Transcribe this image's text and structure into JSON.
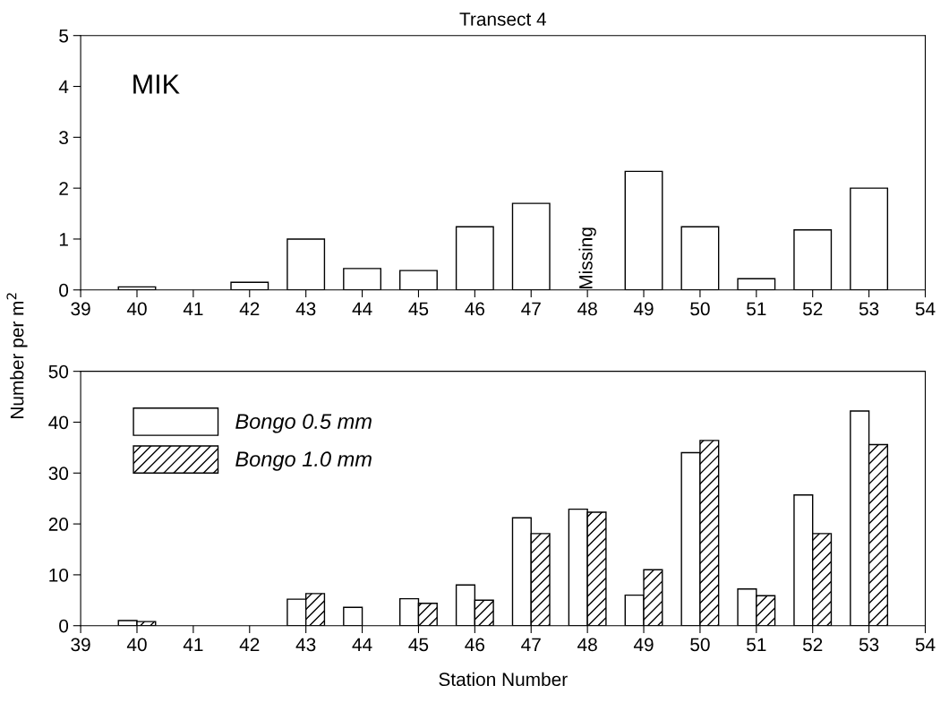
{
  "chart_data": [
    {
      "type": "bar",
      "title": "Transect 4",
      "ylabel": "Number per m$^{2}$",
      "x": [
        40,
        41,
        42,
        43,
        44,
        45,
        46,
        47,
        48,
        49,
        50,
        51,
        52,
        53
      ],
      "series": [
        {
          "color": "#ffffff",
          "values": [
            0.06,
            0,
            0.15,
            1.0,
            0.42,
            0.38,
            1.24,
            1.7,
            null,
            2.33,
            1.24,
            0.22,
            1.18,
            2.0
          ]
        }
      ],
      "xlim": [
        39,
        54
      ],
      "xticks": [
        39,
        40,
        41,
        42,
        43,
        44,
        45,
        46,
        47,
        48,
        49,
        50,
        51,
        52,
        53,
        54
      ],
      "ylim": [
        0,
        5
      ],
      "yticks": [
        0,
        1,
        2,
        3,
        4,
        5
      ],
      "grid": false,
      "legend": false,
      "annotations": [
        "MIK",
        "Missing"
      ]
    },
    {
      "type": "bar",
      "xlabel": "Station Number",
      "x": [
        40,
        41,
        42,
        43,
        44,
        45,
        46,
        47,
        48,
        49,
        50,
        51,
        52,
        53
      ],
      "series": [
        {
          "name": "Bongo 0.5 mm",
          "color": "#ffffff",
          "values": [
            1,
            0,
            0,
            5.2,
            3.6,
            5.3,
            8,
            21.2,
            22.9,
            6,
            34,
            7.2,
            25.7,
            42.2
          ]
        },
        {
          "name": "Bongo 1.0 mm",
          "color": "#000000",
          "values": [
            0.8,
            0,
            0,
            6.3,
            0,
            4.4,
            5,
            18.1,
            22.3,
            11,
            36.4,
            5.9,
            18.1,
            35.6
          ]
        }
      ],
      "xlim": [
        39,
        54
      ],
      "xticks": [
        39,
        40,
        41,
        42,
        43,
        44,
        45,
        46,
        47,
        48,
        49,
        50,
        51,
        52,
        53,
        54
      ],
      "ylim": [
        0,
        50
      ],
      "yticks": [
        0,
        10,
        20,
        30,
        40,
        50
      ],
      "grid": false,
      "legend": "top left"
    }
  ]
}
